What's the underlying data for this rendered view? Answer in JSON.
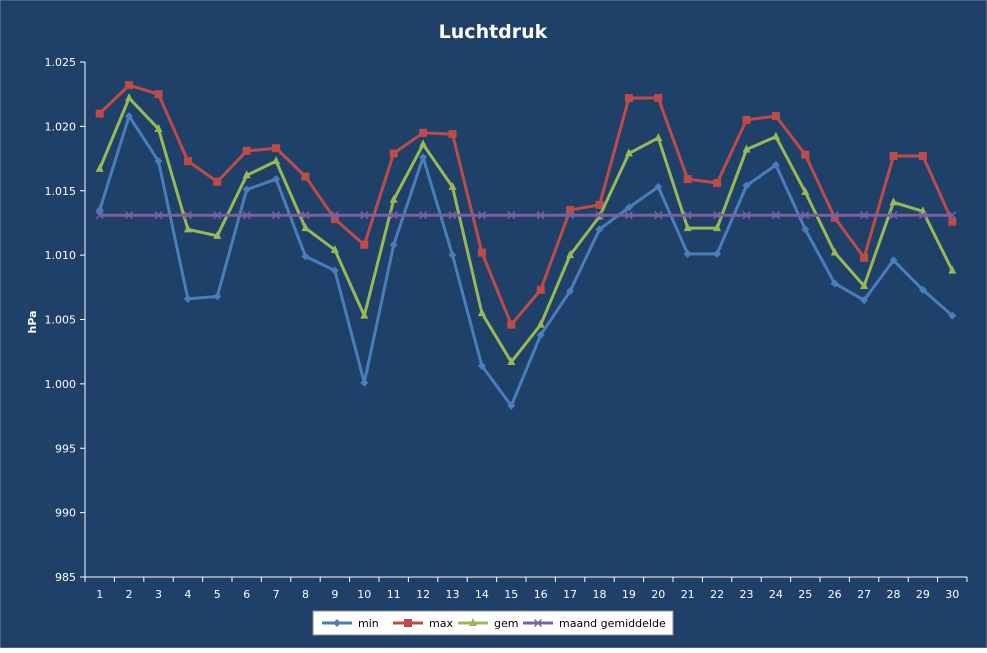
{
  "chart_data": {
    "type": "line",
    "title": "Luchtdruk",
    "xlabel": "",
    "ylabel": "hPa",
    "ylim": [
      985,
      1025
    ],
    "yticks": [
      985,
      990,
      995,
      1000,
      1005,
      1010,
      1015,
      1020,
      1025
    ],
    "ytick_labels": [
      "985",
      "990",
      "995",
      "1.000",
      "1.005",
      "1.010",
      "1.015",
      "1.020",
      "1.025"
    ],
    "categories": [
      "1",
      "2",
      "3",
      "4",
      "5",
      "6",
      "7",
      "8",
      "9",
      "10",
      "11",
      "12",
      "13",
      "14",
      "15",
      "16",
      "17",
      "18",
      "19",
      "20",
      "21",
      "22",
      "23",
      "24",
      "25",
      "26",
      "27",
      "28",
      "29",
      "30"
    ],
    "grid": false,
    "legend_position": "bottom",
    "series": [
      {
        "name": "min",
        "color": "#4a7ebb",
        "marker": "diamond",
        "values": [
          1013.5,
          1020.8,
          1017.3,
          1006.6,
          1006.8,
          1015.1,
          1015.9,
          1009.9,
          1008.8,
          1000.1,
          1010.8,
          1017.6,
          1010.0,
          1001.4,
          998.3,
          1003.8,
          1007.2,
          1012.0,
          1013.7,
          1015.3,
          1010.1,
          1010.1,
          1015.4,
          1017.0,
          1012.0,
          1007.8,
          1006.5,
          1009.6,
          1007.3,
          1005.3
        ]
      },
      {
        "name": "max",
        "color": "#be4b48",
        "marker": "square",
        "values": [
          1021.0,
          1023.2,
          1022.5,
          1017.3,
          1015.7,
          1018.1,
          1018.3,
          1016.1,
          1012.8,
          1010.8,
          1017.9,
          1019.5,
          1019.4,
          1010.2,
          1004.6,
          1007.3,
          1013.5,
          1013.9,
          1022.2,
          1022.2,
          1015.9,
          1015.6,
          1020.5,
          1020.8,
          1017.8,
          1012.9,
          1009.8,
          1017.7,
          1017.7,
          1012.6
        ]
      },
      {
        "name": "gem",
        "color": "#98b954",
        "marker": "triangle",
        "values": [
          1016.7,
          1022.2,
          1019.8,
          1012.0,
          1011.5,
          1016.2,
          1017.3,
          1012.1,
          1010.4,
          1005.3,
          1014.3,
          1018.6,
          1015.3,
          1005.5,
          1001.7,
          1004.6,
          1010.0,
          1013.0,
          1017.9,
          1019.1,
          1012.1,
          1012.1,
          1018.2,
          1019.2,
          1014.9,
          1010.2,
          1007.6,
          1014.1,
          1013.4,
          1008.8
        ]
      },
      {
        "name": "maand gemiddelde",
        "color": "#7d60a0",
        "marker": "x",
        "values": [
          1013.1,
          1013.1,
          1013.1,
          1013.1,
          1013.1,
          1013.1,
          1013.1,
          1013.1,
          1013.1,
          1013.1,
          1013.1,
          1013.1,
          1013.1,
          1013.1,
          1013.1,
          1013.1,
          1013.1,
          1013.1,
          1013.1,
          1013.1,
          1013.1,
          1013.1,
          1013.1,
          1013.1,
          1013.1,
          1013.1,
          1013.1,
          1013.1,
          1013.1,
          1013.1
        ]
      }
    ]
  },
  "colors": {
    "background": "#1f4068",
    "text": "#ffffff",
    "axis": "#ffffff"
  }
}
